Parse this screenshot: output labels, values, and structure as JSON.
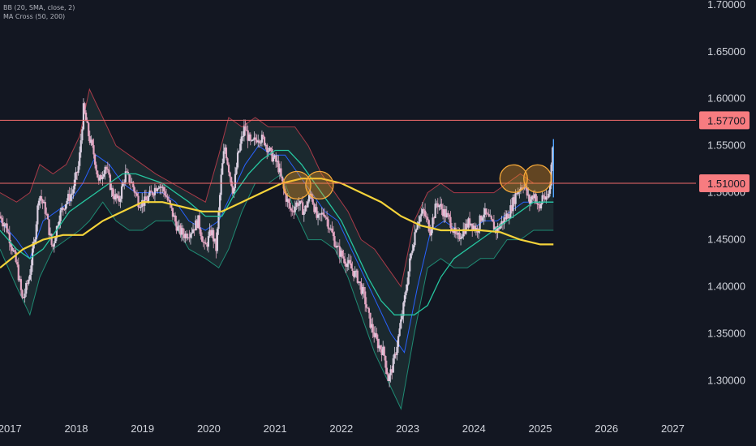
{
  "indicators": {
    "bb_label": "BB (20, SMA, close, 2)",
    "ma_label": "MA Cross (50, 200)"
  },
  "colors": {
    "background": "#131722",
    "axis_text": "#d1d4dc",
    "candle_up": "#d9cfe0",
    "candle_down": "#e3a6c2",
    "bb_upper": "#a83a48",
    "bb_lower": "#1f8a73",
    "bb_fill": "#2a4a48",
    "bb_basis": "#2962ff",
    "ma50": "#26c6a0",
    "ma200": "#f5d33a",
    "hline": "#f26b6b",
    "hline_label_bg": "#f77c80",
    "circle_fill": "#f59a23",
    "circle_stroke": "#f5a93a"
  },
  "chart_data": {
    "type": "line",
    "title": "",
    "ylim": [
      1.265,
      1.705
    ],
    "xlim": [
      2016.85,
      2027.35
    ],
    "y_ticks": [
      "1.70000",
      "1.65000",
      "1.60000",
      "1.55000",
      "1.50000",
      "1.45000",
      "1.40000",
      "1.35000",
      "1.30000"
    ],
    "y_tick_values": [
      1.7,
      1.65,
      1.6,
      1.55,
      1.5,
      1.45,
      1.4,
      1.35,
      1.3
    ],
    "x_ticks": [
      "2017",
      "2018",
      "2019",
      "2020",
      "2021",
      "2022",
      "2023",
      "2024",
      "2025",
      "2026",
      "2027"
    ],
    "x_tick_values": [
      2017,
      2018,
      2019,
      2020,
      2021,
      2022,
      2023,
      2024,
      2025,
      2026,
      2027
    ],
    "price_labels": [
      {
        "label": "1.57700",
        "value": 1.577
      },
      {
        "label": "1.51000",
        "value": 1.51
      }
    ],
    "grid": false,
    "price_series": {
      "name": "",
      "x": [
        2016.85,
        2016.95,
        2017.05,
        2017.12,
        2017.2,
        2017.3,
        2017.38,
        2017.45,
        2017.55,
        2017.65,
        2017.75,
        2017.85,
        2017.95,
        2018.05,
        2018.12,
        2018.2,
        2018.28,
        2018.35,
        2018.45,
        2018.55,
        2018.65,
        2018.75,
        2018.85,
        2018.95,
        2019.05,
        2019.15,
        2019.25,
        2019.35,
        2019.45,
        2019.55,
        2019.65,
        2019.75,
        2019.85,
        2019.95,
        2020.05,
        2020.12,
        2020.2,
        2020.25,
        2020.3,
        2020.38,
        2020.45,
        2020.55,
        2020.65,
        2020.75,
        2020.85,
        2020.95,
        2021.05,
        2021.15,
        2021.25,
        2021.35,
        2021.45,
        2021.55,
        2021.65,
        2021.75,
        2021.85,
        2021.95,
        2022.05,
        2022.15,
        2022.25,
        2022.35,
        2022.45,
        2022.55,
        2022.65,
        2022.72,
        2022.8,
        2022.88,
        2022.95,
        2023.05,
        2023.15,
        2023.25,
        2023.35,
        2023.45,
        2023.55,
        2023.65,
        2023.75,
        2023.85,
        2023.95,
        2024.05,
        2024.15,
        2024.25,
        2024.35,
        2024.45,
        2024.55,
        2024.65,
        2024.75,
        2024.85,
        2024.92,
        2025.0,
        2025.05,
        2025.1,
        2025.15,
        2025.2
      ],
      "values": [
        1.475,
        1.465,
        1.44,
        1.42,
        1.385,
        1.41,
        1.45,
        1.5,
        1.48,
        1.44,
        1.475,
        1.49,
        1.5,
        1.53,
        1.59,
        1.56,
        1.54,
        1.51,
        1.53,
        1.5,
        1.49,
        1.52,
        1.51,
        1.49,
        1.49,
        1.5,
        1.51,
        1.5,
        1.48,
        1.46,
        1.455,
        1.46,
        1.47,
        1.44,
        1.46,
        1.44,
        1.52,
        1.55,
        1.53,
        1.5,
        1.54,
        1.57,
        1.55,
        1.56,
        1.555,
        1.54,
        1.53,
        1.5,
        1.48,
        1.49,
        1.48,
        1.5,
        1.47,
        1.48,
        1.46,
        1.44,
        1.43,
        1.42,
        1.41,
        1.39,
        1.36,
        1.34,
        1.33,
        1.3,
        1.32,
        1.35,
        1.38,
        1.43,
        1.47,
        1.48,
        1.46,
        1.49,
        1.48,
        1.47,
        1.45,
        1.46,
        1.47,
        1.46,
        1.48,
        1.47,
        1.46,
        1.47,
        1.48,
        1.5,
        1.51,
        1.49,
        1.5,
        1.48,
        1.5,
        1.49,
        1.5,
        1.555
      ]
    },
    "bb_upper": {
      "x": [
        2016.85,
        2017.1,
        2017.3,
        2017.45,
        2017.65,
        2017.85,
        2018.05,
        2018.2,
        2018.4,
        2018.6,
        2018.8,
        2019.0,
        2019.2,
        2019.45,
        2019.7,
        2019.95,
        2020.15,
        2020.3,
        2020.5,
        2020.7,
        2020.9,
        2021.1,
        2021.3,
        2021.5,
        2021.7,
        2021.9,
        2022.1,
        2022.3,
        2022.5,
        2022.7,
        2022.9,
        2023.1,
        2023.3,
        2023.5,
        2023.7,
        2023.9,
        2024.1,
        2024.3,
        2024.5,
        2024.7,
        2024.9,
        2025.1,
        2025.2
      ],
      "values": [
        1.5,
        1.49,
        1.5,
        1.53,
        1.52,
        1.53,
        1.56,
        1.61,
        1.58,
        1.55,
        1.54,
        1.53,
        1.52,
        1.51,
        1.5,
        1.49,
        1.54,
        1.58,
        1.57,
        1.58,
        1.57,
        1.57,
        1.57,
        1.55,
        1.52,
        1.5,
        1.48,
        1.45,
        1.44,
        1.42,
        1.4,
        1.47,
        1.5,
        1.51,
        1.5,
        1.5,
        1.5,
        1.5,
        1.51,
        1.52,
        1.51,
        1.51,
        1.51
      ]
    },
    "bb_lower": {
      "x": [
        2016.85,
        2017.1,
        2017.3,
        2017.45,
        2017.65,
        2017.85,
        2018.05,
        2018.2,
        2018.4,
        2018.6,
        2018.8,
        2019.0,
        2019.2,
        2019.45,
        2019.7,
        2019.95,
        2020.15,
        2020.3,
        2020.5,
        2020.7,
        2020.9,
        2021.1,
        2021.3,
        2021.5,
        2021.7,
        2021.9,
        2022.1,
        2022.3,
        2022.5,
        2022.7,
        2022.9,
        2023.1,
        2023.3,
        2023.5,
        2023.7,
        2023.9,
        2024.1,
        2024.3,
        2024.5,
        2024.7,
        2024.9,
        2025.1,
        2025.2
      ],
      "values": [
        1.44,
        1.4,
        1.37,
        1.41,
        1.44,
        1.45,
        1.46,
        1.47,
        1.49,
        1.47,
        1.46,
        1.46,
        1.47,
        1.47,
        1.44,
        1.43,
        1.42,
        1.44,
        1.48,
        1.51,
        1.51,
        1.52,
        1.48,
        1.45,
        1.45,
        1.44,
        1.41,
        1.37,
        1.33,
        1.3,
        1.27,
        1.35,
        1.42,
        1.43,
        1.42,
        1.42,
        1.43,
        1.43,
        1.45,
        1.45,
        1.46,
        1.46,
        1.46
      ]
    },
    "bb_basis": {
      "x": [
        2016.85,
        2017.1,
        2017.3,
        2017.5,
        2017.7,
        2017.9,
        2018.1,
        2018.3,
        2018.5,
        2018.7,
        2018.9,
        2019.1,
        2019.3,
        2019.5,
        2019.7,
        2019.95,
        2020.15,
        2020.35,
        2020.55,
        2020.75,
        2020.95,
        2021.15,
        2021.35,
        2021.55,
        2021.75,
        2021.95,
        2022.15,
        2022.35,
        2022.55,
        2022.75,
        2022.95,
        2023.15,
        2023.35,
        2023.55,
        2023.75,
        2023.95,
        2024.15,
        2024.35,
        2024.55,
        2024.75,
        2024.95,
        2025.2
      ],
      "values": [
        1.47,
        1.45,
        1.43,
        1.47,
        1.48,
        1.49,
        1.51,
        1.54,
        1.53,
        1.51,
        1.5,
        1.5,
        1.5,
        1.49,
        1.47,
        1.46,
        1.47,
        1.5,
        1.53,
        1.55,
        1.54,
        1.54,
        1.52,
        1.5,
        1.48,
        1.47,
        1.44,
        1.41,
        1.38,
        1.35,
        1.33,
        1.4,
        1.46,
        1.47,
        1.46,
        1.46,
        1.47,
        1.47,
        1.48,
        1.49,
        1.49,
        1.49
      ]
    },
    "ma50": {
      "name": "",
      "x": [
        2016.85,
        2017.1,
        2017.3,
        2017.5,
        2017.7,
        2017.9,
        2018.1,
        2018.3,
        2018.5,
        2018.7,
        2018.9,
        2019.1,
        2019.3,
        2019.5,
        2019.7,
        2019.95,
        2020.2,
        2020.4,
        2020.6,
        2020.8,
        2021.0,
        2021.2,
        2021.4,
        2021.6,
        2021.8,
        2022.0,
        2022.2,
        2022.4,
        2022.6,
        2022.8,
        2022.95,
        2023.1,
        2023.3,
        2023.5,
        2023.7,
        2023.9,
        2024.1,
        2024.3,
        2024.5,
        2024.7,
        2024.9,
        2025.1,
        2025.2
      ],
      "values": [
        1.46,
        1.44,
        1.43,
        1.44,
        1.46,
        1.48,
        1.49,
        1.5,
        1.51,
        1.52,
        1.52,
        1.515,
        1.51,
        1.5,
        1.49,
        1.475,
        1.475,
        1.5,
        1.52,
        1.535,
        1.545,
        1.545,
        1.53,
        1.51,
        1.49,
        1.47,
        1.44,
        1.41,
        1.385,
        1.37,
        1.37,
        1.37,
        1.38,
        1.41,
        1.43,
        1.44,
        1.45,
        1.46,
        1.47,
        1.48,
        1.49,
        1.49,
        1.49
      ]
    },
    "ma200": {
      "name": "",
      "x": [
        2016.85,
        2017.2,
        2017.5,
        2017.8,
        2018.1,
        2018.4,
        2018.7,
        2019.0,
        2019.3,
        2019.6,
        2019.9,
        2020.2,
        2020.5,
        2020.8,
        2021.1,
        2021.4,
        2021.7,
        2022.0,
        2022.3,
        2022.6,
        2022.9,
        2023.2,
        2023.5,
        2023.8,
        2024.1,
        2024.4,
        2024.7,
        2025.0,
        2025.2
      ],
      "values": [
        1.42,
        1.44,
        1.45,
        1.455,
        1.455,
        1.47,
        1.48,
        1.49,
        1.49,
        1.485,
        1.48,
        1.48,
        1.49,
        1.5,
        1.51,
        1.515,
        1.515,
        1.51,
        1.5,
        1.49,
        1.475,
        1.465,
        1.46,
        1.46,
        1.46,
        1.458,
        1.45,
        1.445,
        1.445
      ]
    },
    "highlight_circles": [
      {
        "x": 2021.33,
        "y": 1.508
      },
      {
        "x": 2021.67,
        "y": 1.508
      },
      {
        "x": 2024.6,
        "y": 1.515
      },
      {
        "x": 2024.96,
        "y": 1.515
      }
    ]
  }
}
